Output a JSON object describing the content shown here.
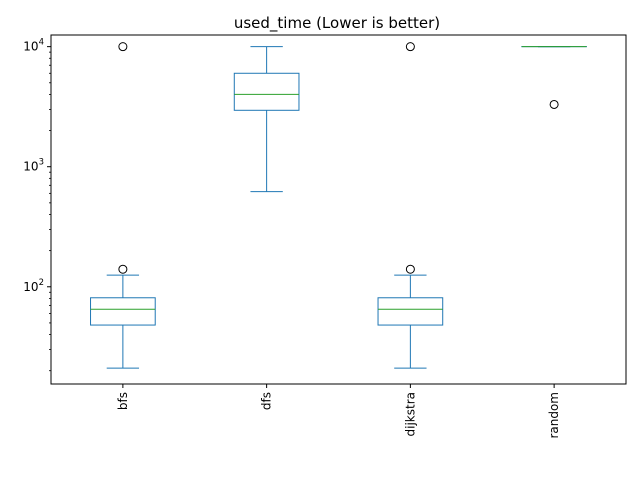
{
  "chart_data": {
    "type": "box",
    "title": "used_time (Lower is better)",
    "xlabel": "",
    "ylabel": "",
    "yscale": "log",
    "ylim": [
      15.5,
      12500
    ],
    "grid": false,
    "legend": "none",
    "categories": [
      "bfs",
      "dfs",
      "dijkstra",
      "random"
    ],
    "y_tick_labels": [
      {
        "value": 100,
        "base": "10",
        "exp": "2"
      },
      {
        "value": 1000,
        "base": "10",
        "exp": "3"
      },
      {
        "value": 10000,
        "base": "10",
        "exp": "4"
      }
    ],
    "boxes": [
      {
        "category": "bfs",
        "whisker_low": 21,
        "q1": 48,
        "median": 65,
        "q3": 81,
        "whisker_high": 125,
        "outliers": [
          140,
          10000
        ]
      },
      {
        "category": "dfs",
        "whisker_low": 620,
        "q1": 2950,
        "median": 4000,
        "q3": 6000,
        "whisker_high": 10000,
        "outliers": []
      },
      {
        "category": "dijkstra",
        "whisker_low": 21,
        "q1": 48,
        "median": 65,
        "q3": 81,
        "whisker_high": 125,
        "outliers": [
          140,
          10000
        ]
      },
      {
        "category": "random",
        "whisker_low": 10000,
        "q1": 10000,
        "median": 10000,
        "q3": 10000,
        "whisker_high": 10000,
        "outliers": [
          3300
        ]
      }
    ],
    "colors": {
      "box": "#1f77b4",
      "median": "#2ca02c",
      "outlier_edge": "#000000"
    }
  }
}
